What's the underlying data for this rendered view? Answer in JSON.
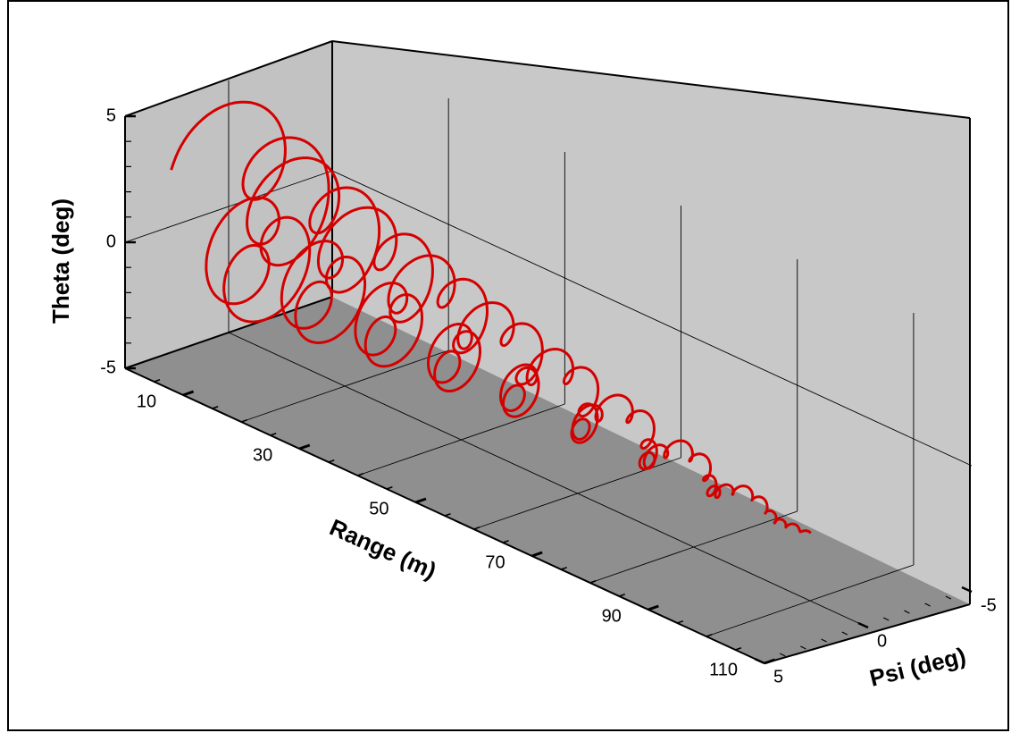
{
  "chart_data": {
    "type": "line",
    "projection": "3d",
    "title": "",
    "axes": {
      "range": {
        "label": "Range (m)",
        "lim": [
          0,
          110
        ],
        "ticks": [
          "10",
          "30",
          "50",
          "70",
          "90",
          "110"
        ],
        "tick_values": [
          10,
          30,
          50,
          70,
          90,
          110
        ]
      },
      "theta": {
        "label": "Theta (deg)",
        "lim": [
          -5,
          5
        ],
        "ticks": [
          "5",
          "0",
          "-5"
        ],
        "tick_values": [
          5,
          0,
          -5
        ]
      },
      "psi": {
        "label": "Psi (deg)",
        "lim": [
          -5,
          5
        ],
        "ticks": [
          "-5",
          "0",
          "5"
        ],
        "tick_values": [
          -5,
          0,
          5
        ]
      }
    },
    "grid": true,
    "legend": "none",
    "series": [
      {
        "color": "#d40000",
        "description_points": "3D trajectory [range_m, psi_deg, theta_deg] — epicyclic motion with decaying amplitude",
        "fast_arm_deg": [
          1.9,
          0.07
        ],
        "slow_arm_deg": [
          2.4,
          0.023
        ],
        "fast_cycles_per_m": 0.45,
        "slow_cycles_per_m": 0.09,
        "mean_theta_deg": [
          0.0,
          -2.2
        ],
        "mean_psi_deg": [
          0.0,
          0.3
        ],
        "range_m": [
          0,
          101
        ]
      }
    ]
  },
  "colors": {
    "back_wall": "#c8c8c8",
    "side_wall": "#c2c2c2",
    "floor": "#8f8f8f",
    "trajectory": "#d40000"
  }
}
